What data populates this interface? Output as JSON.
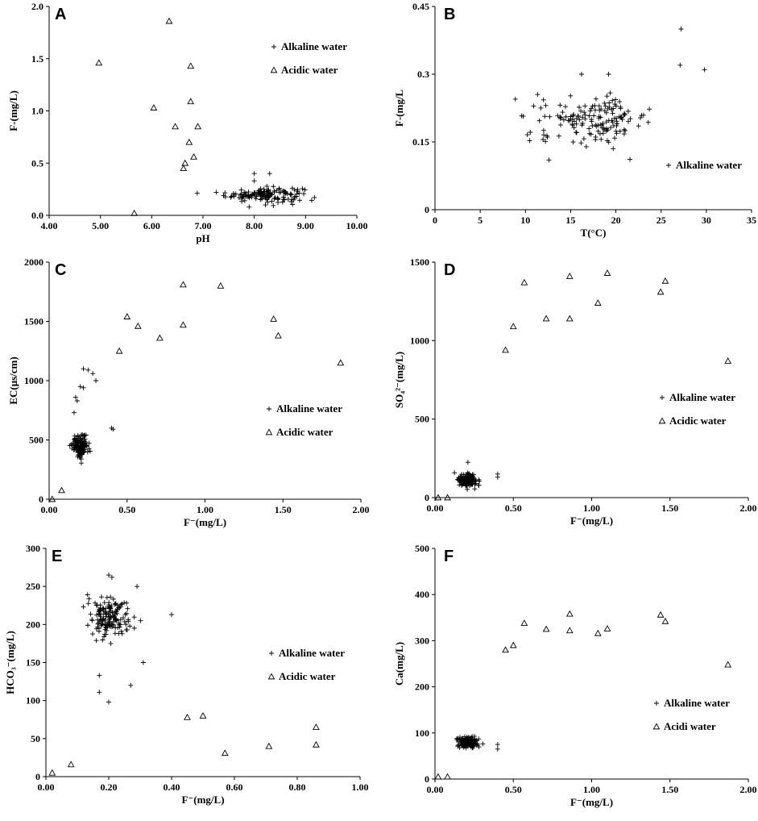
{
  "chart_data": [
    {
      "id": "A",
      "type": "scatter",
      "panel_label": "A",
      "xlabel": "pH",
      "ylabel": "F-(mg/L)",
      "xlim": [
        4.0,
        10.0
      ],
      "ylim": [
        0.0,
        2.0
      ],
      "xticks": [
        4.0,
        5.0,
        6.0,
        7.0,
        8.0,
        9.0,
        10.0
      ],
      "xtick_labels": [
        "4.00",
        "5.00",
        "6.00",
        "7.00",
        "8.00",
        "9.00",
        "10.00"
      ],
      "yticks": [
        0.0,
        0.5,
        1.0,
        1.5,
        2.0
      ],
      "ytick_labels": [
        "0.0",
        "0.5",
        "1.0",
        "1.5",
        "2.0"
      ],
      "legend_position": "top-right",
      "series": [
        {
          "name": "Alkaline water",
          "marker": "plus",
          "cluster": {
            "center": [
              8.2,
              0.2
            ],
            "spread": [
              0.75,
              0.07
            ],
            "count": 150
          },
          "points": [
            [
              8.0,
              0.4
            ],
            [
              8.3,
              0.4
            ],
            [
              7.9,
              0.08
            ],
            [
              8.0,
              0.33
            ]
          ]
        },
        {
          "name": "Acidic water",
          "marker": "triangle",
          "points": [
            [
              4.97,
              1.46
            ],
            [
              5.66,
              0.02
            ],
            [
              6.04,
              1.03
            ],
            [
              6.34,
              1.86
            ],
            [
              6.46,
              0.85
            ],
            [
              6.62,
              0.45
            ],
            [
              6.65,
              0.5
            ],
            [
              6.73,
              0.7
            ],
            [
              6.76,
              1.43
            ],
            [
              6.76,
              1.09
            ],
            [
              6.82,
              0.56
            ],
            [
              6.9,
              0.85
            ]
          ]
        }
      ]
    },
    {
      "id": "B",
      "type": "scatter",
      "panel_label": "B",
      "xlabel": "T(°C)",
      "ylabel": "F-(mg/L",
      "xlim": [
        0,
        35
      ],
      "ylim": [
        0,
        0.45
      ],
      "xticks": [
        0,
        5,
        10,
        15,
        20,
        25,
        30,
        35
      ],
      "xtick_labels": [
        "0",
        "5",
        "10",
        "15",
        "20",
        "25",
        "30",
        "35"
      ],
      "yticks": [
        0,
        0.15,
        0.3,
        0.45
      ],
      "ytick_labels": [
        "0",
        "0.15",
        "0.3",
        "0.45"
      ],
      "legend_position": "lower-right",
      "series": [
        {
          "name": "Alkaline water",
          "marker": "plus",
          "cluster": {
            "center": [
              17.5,
              0.2
            ],
            "spread": [
              6.5,
              0.05
            ],
            "count": 160
          },
          "points": [
            [
              27.2,
              0.4
            ],
            [
              27.1,
              0.32
            ],
            [
              29.8,
              0.31
            ],
            [
              12.6,
              0.11
            ],
            [
              16.2,
              0.3
            ],
            [
              19.2,
              0.3
            ]
          ]
        }
      ]
    },
    {
      "id": "C",
      "type": "scatter",
      "panel_label": "C",
      "xlabel": "F⁻(mg/L)",
      "ylabel": "EC(μs/cm)",
      "xlim": [
        0,
        2.0
      ],
      "ylim": [
        0,
        2000
      ],
      "xticks": [
        0,
        0.5,
        1.0,
        1.5,
        2.0
      ],
      "xtick_labels": [
        "0.00",
        "0.50",
        "1.00",
        "1.50",
        "2.00"
      ],
      "yticks": [
        0,
        500,
        1000,
        1500,
        2000
      ],
      "ytick_labels": [
        "0",
        "500",
        "1000",
        "1500",
        "2000"
      ],
      "legend_position": "right",
      "series": [
        {
          "name": "Alkaline water",
          "marker": "plus",
          "cluster": {
            "center": [
              0.2,
              450
            ],
            "spread": [
              0.05,
              90
            ],
            "count": 150
          },
          "points": [
            [
              0.22,
              1100
            ],
            [
              0.25,
              1090
            ],
            [
              0.28,
              1060
            ],
            [
              0.3,
              1000
            ],
            [
              0.2,
              950
            ],
            [
              0.22,
              940
            ],
            [
              0.17,
              860
            ],
            [
              0.18,
              830
            ],
            [
              0.16,
              730
            ],
            [
              0.4,
              600
            ],
            [
              0.41,
              590
            ]
          ]
        },
        {
          "name": "Acidic water",
          "marker": "triangle",
          "points": [
            [
              0.02,
              0
            ],
            [
              0.08,
              75
            ],
            [
              0.45,
              1250
            ],
            [
              0.5,
              1540
            ],
            [
              0.57,
              1460
            ],
            [
              0.71,
              1360
            ],
            [
              0.86,
              1810
            ],
            [
              0.86,
              1470
            ],
            [
              1.1,
              1800
            ],
            [
              1.44,
              1520
            ],
            [
              1.47,
              1380
            ],
            [
              1.87,
              1150
            ]
          ]
        }
      ]
    },
    {
      "id": "D",
      "type": "scatter",
      "panel_label": "D",
      "xlabel": "F⁻(mg/L)",
      "ylabel": "SO₄²⁻(mg/L)",
      "xlim": [
        0,
        2.0
      ],
      "ylim": [
        0,
        1500
      ],
      "xticks": [
        0,
        0.5,
        1.0,
        1.5,
        2.0
      ],
      "xtick_labels": [
        "0.00",
        "0.50",
        "1.00",
        "1.50",
        "2.00"
      ],
      "yticks": [
        0,
        500,
        1000,
        1500
      ],
      "ytick_labels": [
        "0",
        "500",
        "1000",
        "1500"
      ],
      "legend_position": "right",
      "series": [
        {
          "name": "Alkaline water",
          "marker": "plus",
          "cluster": {
            "center": [
              0.21,
              110
            ],
            "spread": [
              0.06,
              45
            ],
            "count": 150
          },
          "points": [
            [
              0.21,
              225
            ],
            [
              0.4,
              150
            ],
            [
              0.4,
              130
            ]
          ]
        },
        {
          "name": "Acidic water",
          "marker": "triangle",
          "points": [
            [
              0.02,
              0
            ],
            [
              0.08,
              0
            ],
            [
              0.45,
              940
            ],
            [
              0.5,
              1090
            ],
            [
              0.57,
              1370
            ],
            [
              0.71,
              1140
            ],
            [
              0.86,
              1410
            ],
            [
              0.86,
              1140
            ],
            [
              1.04,
              1240
            ],
            [
              1.1,
              1430
            ],
            [
              1.44,
              1310
            ],
            [
              1.47,
              1380
            ],
            [
              1.87,
              870
            ]
          ]
        }
      ]
    },
    {
      "id": "E",
      "type": "scatter",
      "panel_label": "E",
      "xlabel": "F⁻(mg/L)",
      "ylabel": "HCO₃⁻(mg/L)",
      "xlim": [
        0,
        1.0
      ],
      "ylim": [
        0,
        300
      ],
      "xticks": [
        0,
        0.2,
        0.4,
        0.6,
        0.8,
        1.0
      ],
      "xtick_labels": [
        "0.00",
        "0.20",
        "0.40",
        "0.60",
        "0.80",
        "1.00"
      ],
      "yticks": [
        0,
        50,
        100,
        150,
        200,
        250,
        300
      ],
      "ytick_labels": [
        "0",
        "50",
        "100",
        "150",
        "200",
        "250",
        "300"
      ],
      "legend_position": "right",
      "series": [
        {
          "name": "Alkaline water",
          "marker": "plus",
          "cluster": {
            "center": [
              0.2,
              210
            ],
            "spread": [
              0.06,
              25
            ],
            "count": 160
          },
          "points": [
            [
              0.2,
              265
            ],
            [
              0.21,
              262
            ],
            [
              0.29,
              250
            ],
            [
              0.31,
              150
            ],
            [
              0.17,
              133
            ],
            [
              0.27,
              120
            ],
            [
              0.17,
              111
            ],
            [
              0.2,
              98
            ],
            [
              0.4,
              213
            ]
          ]
        },
        {
          "name": "Acidic water",
          "marker": "triangle",
          "points": [
            [
              0.02,
              5
            ],
            [
              0.08,
              16
            ],
            [
              0.45,
              78
            ],
            [
              0.5,
              80
            ],
            [
              0.57,
              31
            ],
            [
              0.71,
              40
            ],
            [
              0.86,
              65
            ],
            [
              0.86,
              42
            ]
          ]
        }
      ]
    },
    {
      "id": "F",
      "type": "scatter",
      "panel_label": "F",
      "xlabel": "F⁻(mg/L)",
      "ylabel": "Ca(mg/L)",
      "xlim": [
        0,
        2.0
      ],
      "ylim": [
        0,
        500
      ],
      "xticks": [
        0,
        0.5,
        1.0,
        1.5,
        2.0
      ],
      "xtick_labels": [
        "0.00",
        "0.50",
        "1.00",
        "1.50",
        "2.00"
      ],
      "yticks": [
        0,
        100,
        200,
        300,
        400,
        500
      ],
      "ytick_labels": [
        "0",
        "100",
        "200",
        "300",
        "400",
        "500"
      ],
      "legend_position": "right",
      "series": [
        {
          "name": "Alkaline water",
          "marker": "plus",
          "cluster": {
            "center": [
              0.21,
              80
            ],
            "spread": [
              0.06,
              13
            ],
            "count": 150
          },
          "points": [
            [
              0.4,
              75
            ],
            [
              0.4,
              65
            ]
          ]
        },
        {
          "name": "Acidi water",
          "marker": "triangle",
          "points": [
            [
              0.02,
              5
            ],
            [
              0.08,
              5
            ],
            [
              0.45,
              280
            ],
            [
              0.5,
              290
            ],
            [
              0.57,
              338
            ],
            [
              0.71,
              325
            ],
            [
              0.86,
              358
            ],
            [
              0.86,
              322
            ],
            [
              1.04,
              316
            ],
            [
              1.1,
              326
            ],
            [
              1.44,
              356
            ],
            [
              1.47,
              342
            ],
            [
              1.87,
              248
            ]
          ]
        }
      ]
    }
  ]
}
